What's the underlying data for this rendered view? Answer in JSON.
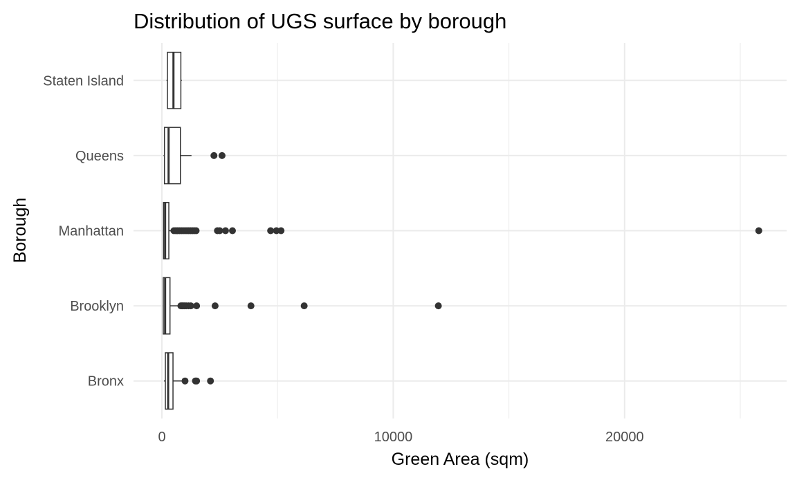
{
  "chart_data": {
    "type": "boxplot",
    "orientation": "horizontal",
    "title": "Distribution of UGS surface by borough",
    "xlabel": "Green Area (sqm)",
    "ylabel": "Borough",
    "xlim": [
      -1200,
      27200
    ],
    "x_ticks": [
      0,
      10000,
      20000
    ],
    "x_tick_labels": [
      "0",
      "10000",
      "20000"
    ],
    "x_minor_ticks": [
      5000,
      15000,
      25000
    ],
    "grid": true,
    "legend": "none",
    "colors": {
      "box_fill": "#ffffff",
      "box_stroke": "#333333",
      "grid": "#ebebeb",
      "tick_text": "#4d4d4d"
    },
    "categories": [
      "Bronx",
      "Brooklyn",
      "Manhattan",
      "Queens",
      "Staten Island"
    ],
    "boxes": [
      {
        "name": "Bronx",
        "whisker_low": 90,
        "q1": 150,
        "median": 270,
        "q3": 480,
        "whisker_high": 950,
        "outliers": [
          1000,
          1450,
          1500,
          2100
        ]
      },
      {
        "name": "Brooklyn",
        "whisker_low": 40,
        "q1": 60,
        "median": 140,
        "q3": 350,
        "whisker_high": 780,
        "outliers": [
          820,
          870,
          920,
          980,
          1050,
          1150,
          1250,
          1500,
          2300,
          3850,
          6150,
          11950
        ]
      },
      {
        "name": "Manhattan",
        "whisker_low": 50,
        "q1": 70,
        "median": 140,
        "q3": 300,
        "whisker_high": 470,
        "outliers": [
          520,
          600,
          680,
          760,
          840,
          920,
          1000,
          1080,
          1160,
          1240,
          1320,
          1400,
          1480,
          2400,
          2500,
          2750,
          3050,
          4700,
          4950,
          5150,
          25800
        ]
      },
      {
        "name": "Queens",
        "whisker_low": 70,
        "q1": 110,
        "median": 290,
        "q3": 800,
        "whisker_high": 1280,
        "outliers": [
          2250,
          2600
        ]
      },
      {
        "name": "Staten Island",
        "whisker_low": 200,
        "q1": 240,
        "median": 500,
        "q3": 820,
        "whisker_high": 860,
        "outliers": []
      }
    ]
  }
}
